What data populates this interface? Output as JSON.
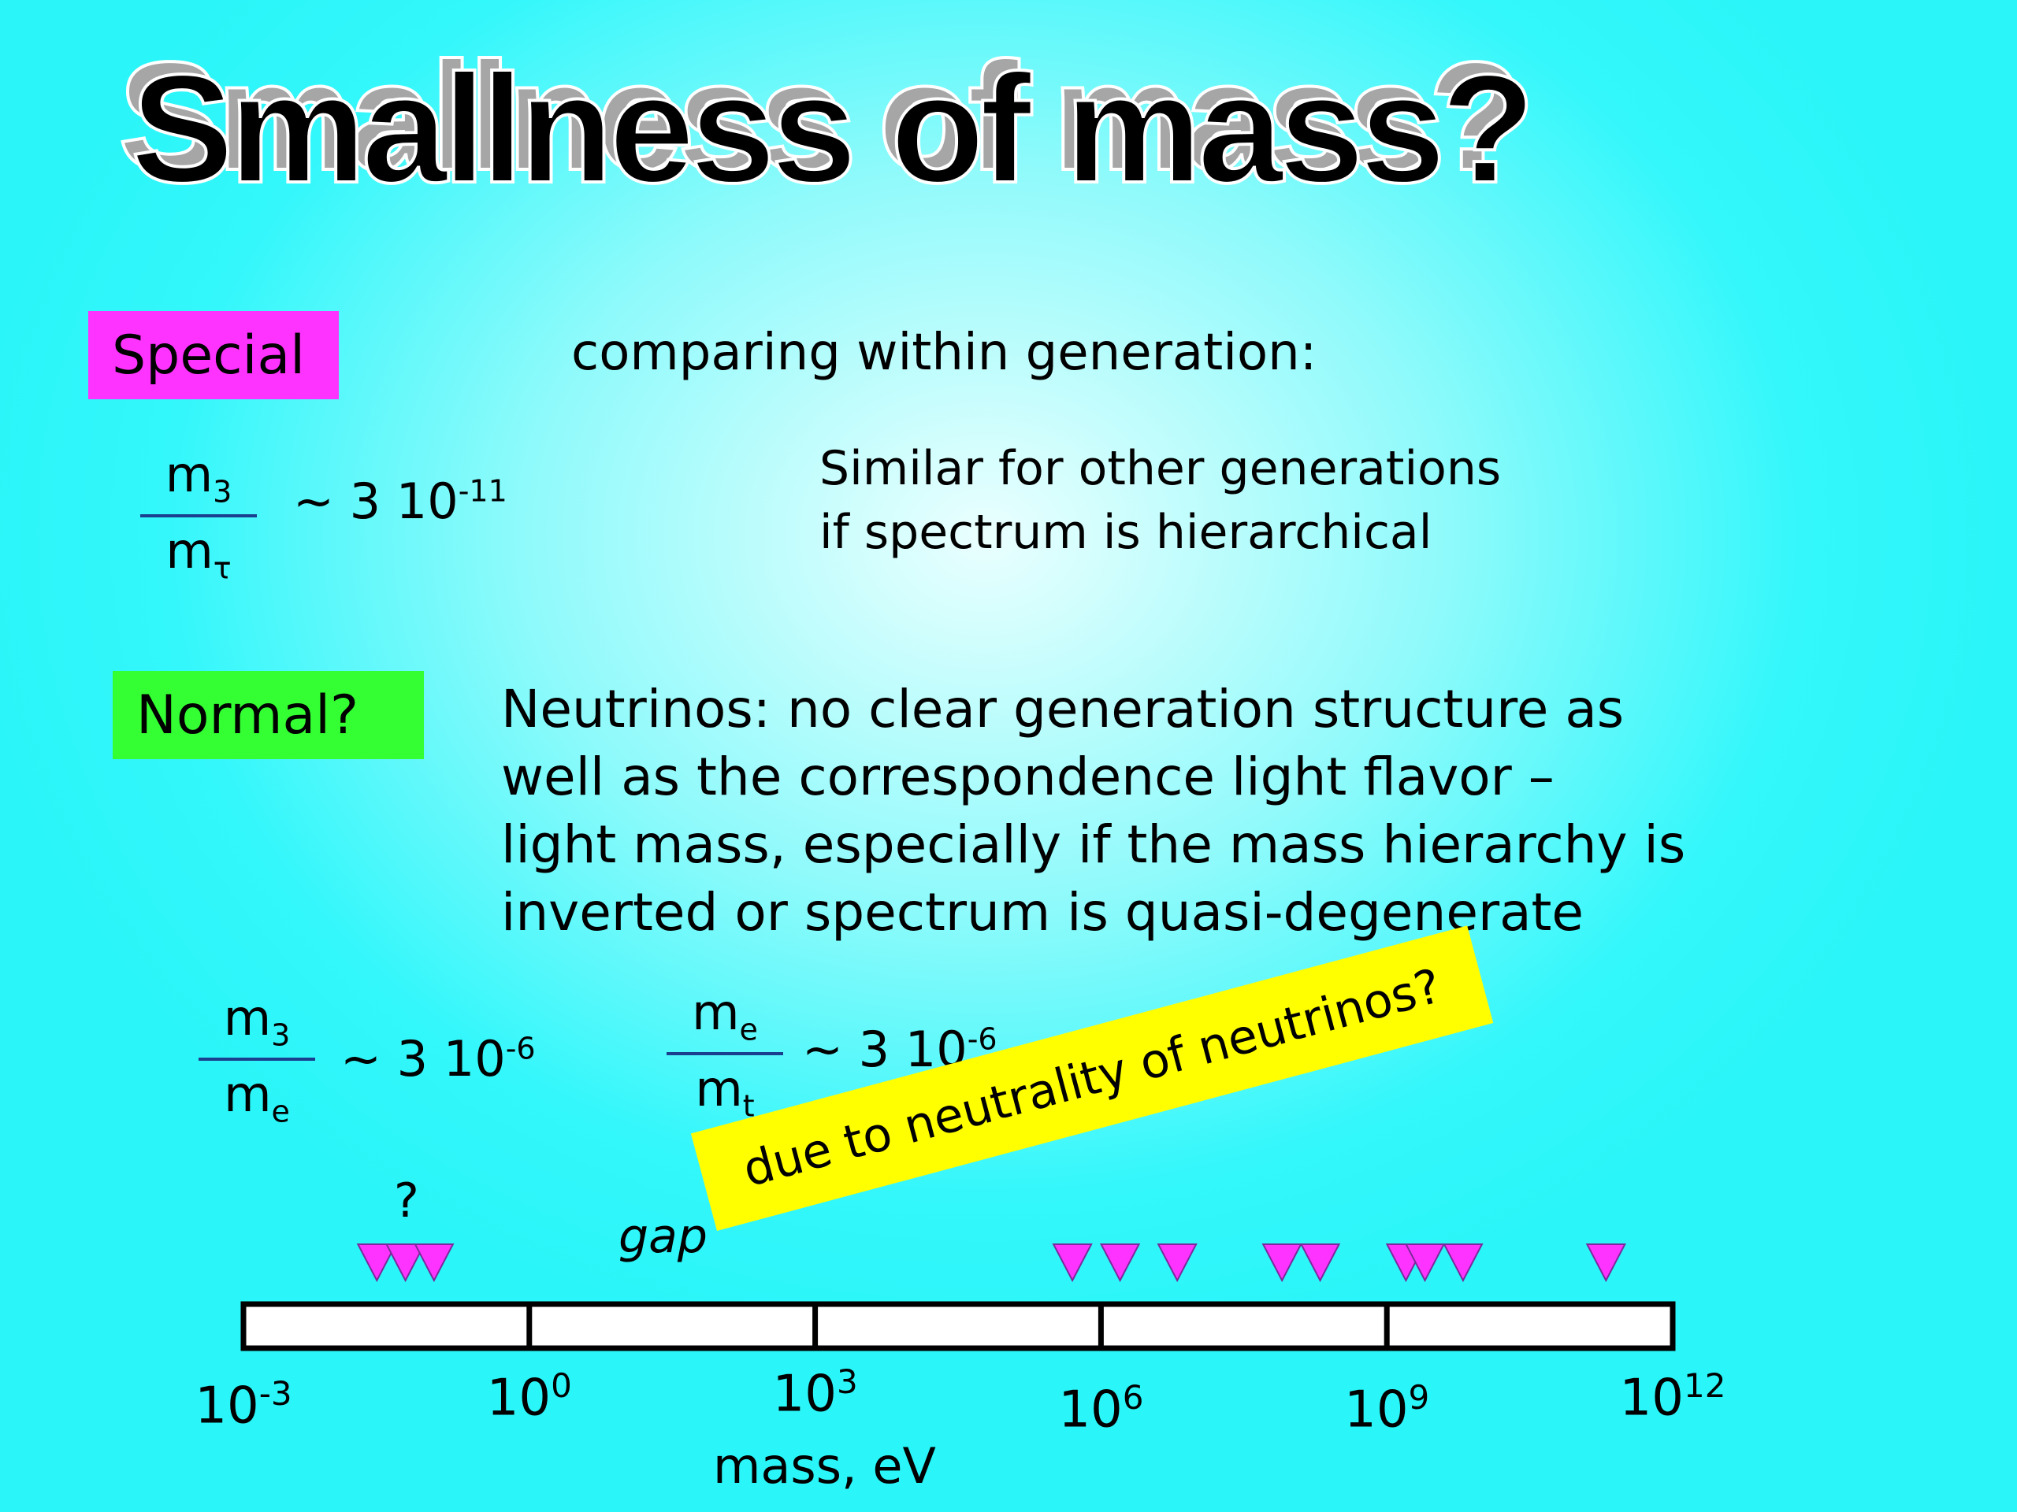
{
  "title": "Smallness of mass?",
  "special": {
    "label": "Special",
    "heading": "comparing within generation:",
    "fraction": {
      "num": "m",
      "num_sub": "3",
      "den": "m",
      "den_sub": "τ"
    },
    "ratio": {
      "prefix": "~ 3 10",
      "exp": "-11"
    },
    "note_lines": [
      "Similar for other generations",
      "if spectrum is hierarchical"
    ]
  },
  "normal": {
    "label": "Normal?",
    "text_lines": [
      "Neutrinos: no clear generation structure as",
      "well as the  correspondence light flavor –",
      "light mass, especially if the mass hierarchy is",
      "inverted or spectrum is quasi-degenerate"
    ],
    "fraction1": {
      "num": "m",
      "num_sub": "3",
      "den": "m",
      "den_sub": "e"
    },
    "ratio1": {
      "prefix": "~ 3 10",
      "exp": "-6"
    },
    "fraction2": {
      "num": "m",
      "num_sub": "e",
      "den": "m",
      "den_sub": "t"
    },
    "ratio2": {
      "prefix": "~ 3 10",
      "exp": "-6"
    }
  },
  "scale": {
    "question_mark": "?",
    "gap_label": "gap",
    "banner": "due to neutrality of neutrinos?",
    "axis_label": "mass, eV",
    "ticks": [
      {
        "base": "10",
        "exp": "-3",
        "log": -3
      },
      {
        "base": "10",
        "exp": "0",
        "log": 0
      },
      {
        "base": "10",
        "exp": "3",
        "log": 3
      },
      {
        "base": "10",
        "exp": "6",
        "log": 6
      },
      {
        "base": "10",
        "exp": "9",
        "log": 9
      },
      {
        "base": "10",
        "exp": "12",
        "log": 12
      }
    ],
    "marker_color": "#ff33ff",
    "markers_log_ev": [
      -1.6,
      -1.3,
      -1.0,
      5.7,
      6.2,
      6.8,
      7.9,
      8.3,
      9.2,
      9.4,
      9.8,
      11.3
    ]
  },
  "colors": {
    "special_box": "#ff33ff",
    "normal_box": "#33ff33",
    "banner": "#ffff00",
    "fraction_bar": "#1a3f8f"
  }
}
